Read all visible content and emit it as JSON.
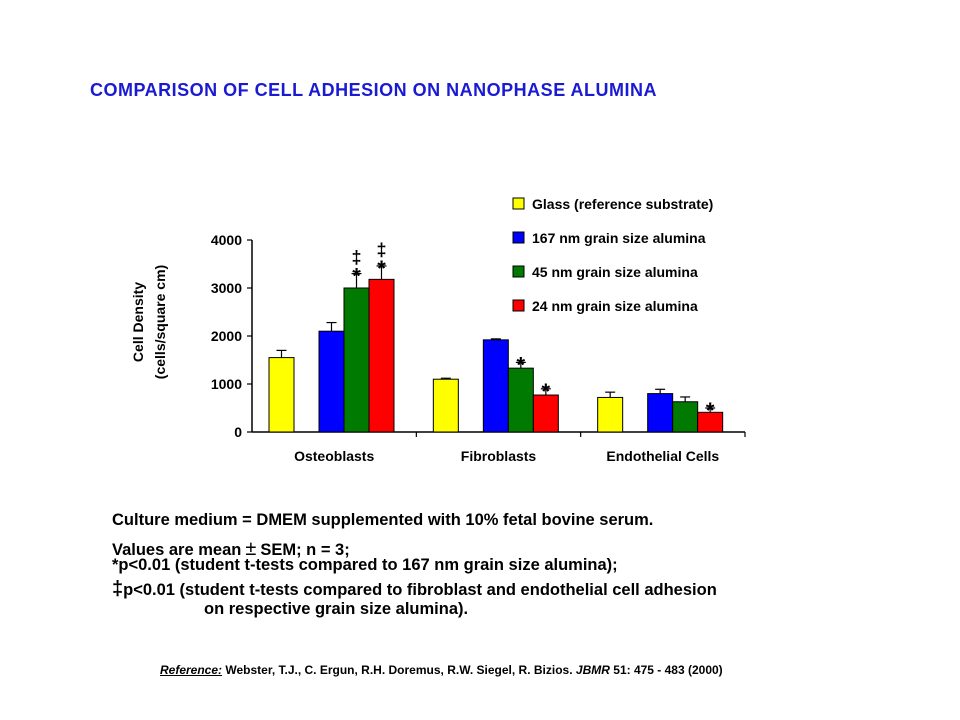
{
  "title": "COMPARISON OF CELL ADHESION ON NANOPHASE ALUMINA",
  "chart_data": {
    "type": "bar",
    "categories": [
      "Osteoblasts",
      "Fibroblasts",
      "Endothelial Cells"
    ],
    "ylabel_line1": "Cell Density",
    "ylabel_line2": "(cells/square cm)",
    "ylim": [
      0,
      4000
    ],
    "yticks": [
      0,
      1000,
      2000,
      3000,
      4000
    ],
    "grid": false,
    "legend_position": "top-right",
    "series": [
      {
        "name": "Glass (reference substrate)",
        "color": "#ffff00",
        "values": [
          1550,
          1100,
          720
        ],
        "errors": [
          150,
          20,
          110
        ],
        "markers": [
          "",
          "",
          ""
        ]
      },
      {
        "name": "167 nm grain size alumina",
        "color": "#0000ff",
        "values": [
          2100,
          1920,
          800
        ],
        "errors": [
          180,
          20,
          90
        ],
        "markers": [
          "",
          "",
          ""
        ]
      },
      {
        "name": "45 nm grain size alumina",
        "color": "#007a00",
        "values": [
          3000,
          1330,
          630
        ],
        "errors": [
          300,
          120,
          100
        ],
        "markers": [
          "‡*",
          "*",
          ""
        ]
      },
      {
        "name": "24 nm grain size alumina",
        "color": "#ff0000",
        "values": [
          3180,
          770,
          410
        ],
        "errors": [
          280,
          130,
          90
        ],
        "markers": [
          "‡*",
          "*",
          "*"
        ]
      }
    ]
  },
  "notes": {
    "line1": "Culture medium = DMEM supplemented with 10% fetal bovine serum.",
    "line2_a": "Values are mean",
    "line2_pm": "±",
    "line2_b": "SEM; n = 3;",
    "line3": "*p<0.01 (student t-tests compared to 167 nm grain size alumina);",
    "line4_sym": "‡",
    "line4": "p<0.01 (student t-tests compared to fibroblast and endothelial cell adhesion",
    "line5": "on respective grain size alumina)."
  },
  "reference": {
    "label": "Reference:",
    "authors": "Webster, T.J., C. Ergun, R.H. Doremus, R.W. Siegel, R. Bizios.",
    "journal": "JBMR",
    "details": "51: 475 - 483 (2000)"
  }
}
